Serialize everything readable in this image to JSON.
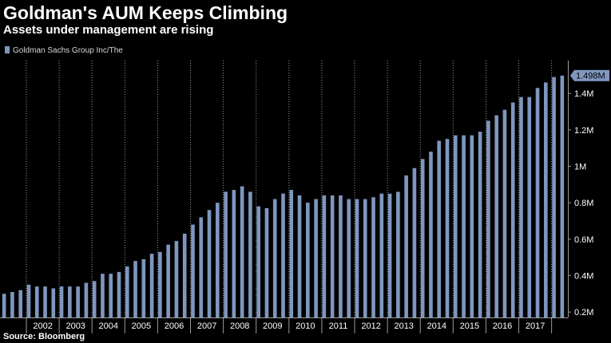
{
  "colors": {
    "background": "#000000",
    "bar": "#7f97bf",
    "grid": "#9a9a9a",
    "text": "#ffffff"
  },
  "source": "Source: Bloomberg",
  "chart_data": {
    "type": "bar",
    "title": "Goldman's AUM Keeps Climbing",
    "subtitle": "Assets under management are rising",
    "series": [
      {
        "name": "Goldman Sachs Group Inc/The",
        "values": [
          0.3,
          0.31,
          0.32,
          0.35,
          0.34,
          0.34,
          0.33,
          0.34,
          0.34,
          0.34,
          0.36,
          0.37,
          0.41,
          0.41,
          0.42,
          0.45,
          0.48,
          0.49,
          0.52,
          0.53,
          0.57,
          0.59,
          0.63,
          0.68,
          0.72,
          0.76,
          0.8,
          0.86,
          0.87,
          0.89,
          0.86,
          0.78,
          0.77,
          0.82,
          0.85,
          0.87,
          0.84,
          0.8,
          0.82,
          0.84,
          0.84,
          0.84,
          0.82,
          0.82,
          0.82,
          0.83,
          0.85,
          0.85,
          0.86,
          0.95,
          0.99,
          1.04,
          1.08,
          1.14,
          1.15,
          1.17,
          1.17,
          1.17,
          1.19,
          1.25,
          1.28,
          1.31,
          1.35,
          1.38,
          1.38,
          1.43,
          1.46,
          1.49,
          1.498
        ]
      }
    ],
    "x_tick_labels": [
      "2002",
      "2003",
      "2004",
      "2005",
      "2006",
      "2007",
      "2008",
      "2009",
      "2010",
      "2011",
      "2012",
      "2013",
      "2014",
      "2015",
      "2016",
      "2017"
    ],
    "y_tick_labels": [
      "0.2M",
      "0.4M",
      "0.6M",
      "0.8M",
      "1M",
      "1.2M",
      "1.4M"
    ],
    "y_ticks": [
      0.2,
      0.4,
      0.6,
      0.8,
      1.0,
      1.2,
      1.4
    ],
    "ylim": [
      0.17,
      1.58
    ],
    "last_value_label": "1.498M",
    "grid": "dotted-vertical",
    "legend_position": "top-left"
  }
}
